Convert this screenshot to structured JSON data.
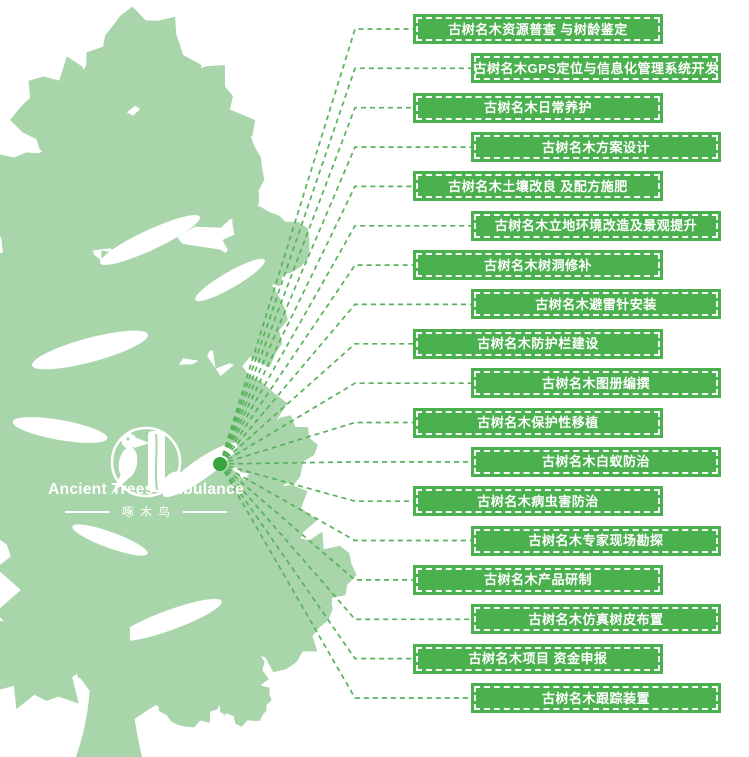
{
  "logo": {
    "name": "Ancient Trees Ambulance",
    "subtitle": "啄木鸟"
  },
  "services": [
    "古树名木资源普查 与树龄鉴定",
    "古树名木GPS定位与信息化管理系统开发",
    "古树名木日常养护",
    "古树名木方案设计",
    "古树名木土壤改良 及配方施肥",
    "古树名木立地环境改造及景观提升",
    "古树名木树洞修补",
    "古树名木避雷针安装",
    "古树名木防护栏建设",
    "古树名木图册编撰",
    "古树名木保护性移植",
    "古树名木白蚁防治",
    "古树名木病虫害防治",
    "古树名木专家现场勘探",
    "古树名木产品研制",
    "古树名木仿真树皮布置",
    "古树名木项目 资金申报",
    "古树名木跟踪装置"
  ],
  "colors": {
    "banner_green": "#4bb04e",
    "tree_green": "#a9d5ab",
    "line_green": "#58b25b",
    "dot_green": "#36a53c",
    "text_white": "#ffffff"
  }
}
